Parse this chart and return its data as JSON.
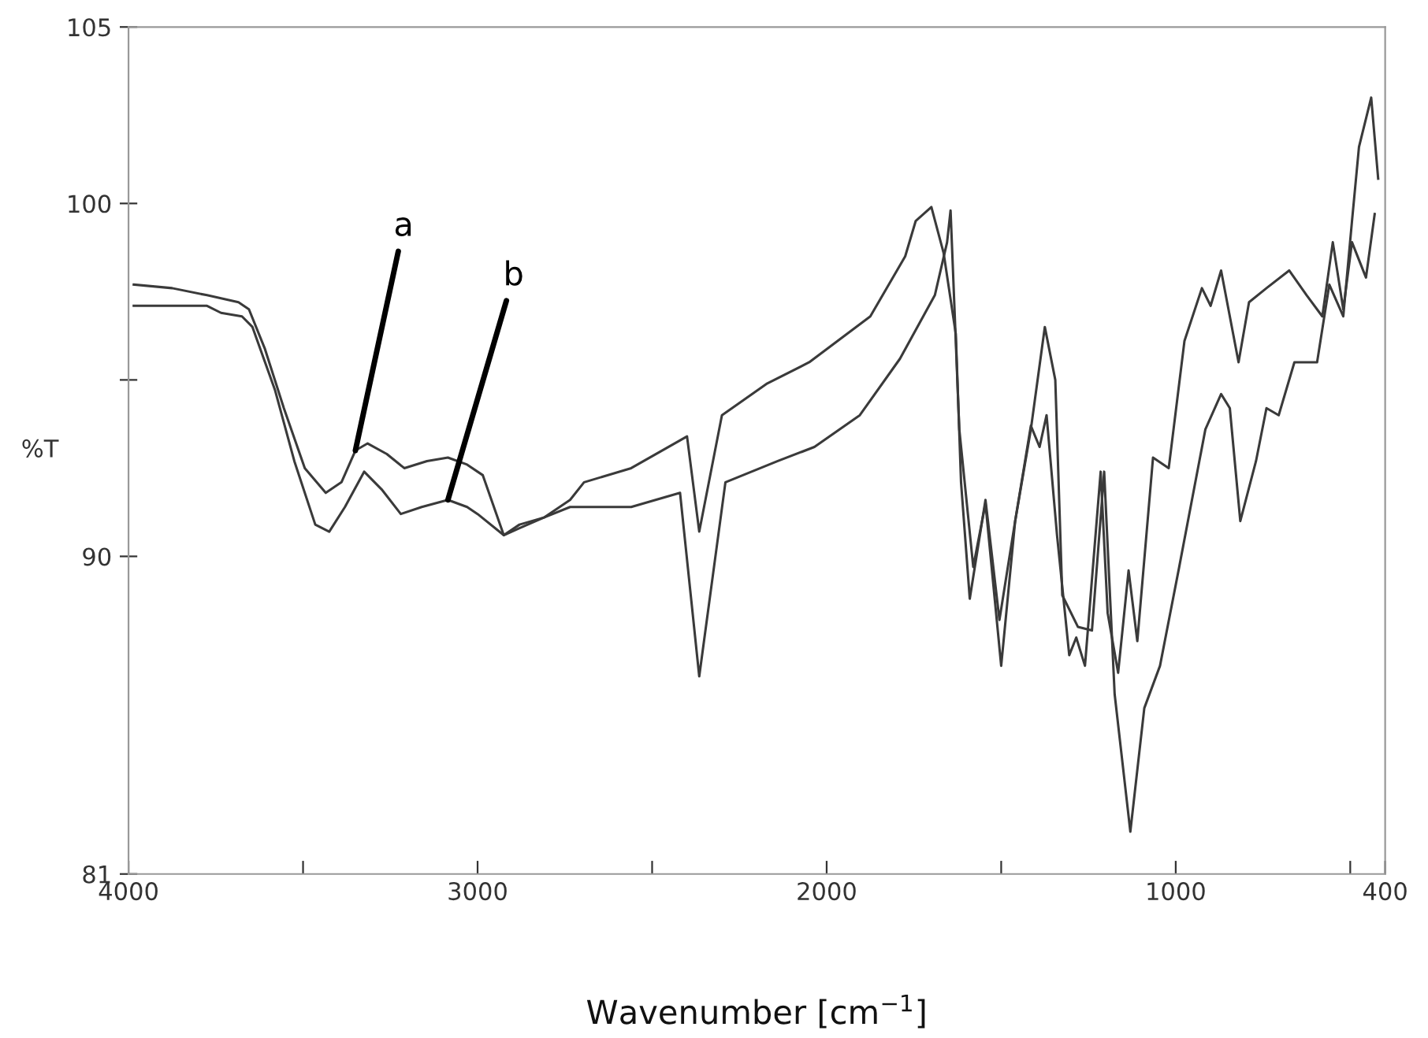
{
  "chart_data": {
    "type": "line",
    "xlabel": "Wavenumber [cm$^{−1}$]",
    "ylabel": "%T",
    "xlim": [
      4000,
      400
    ],
    "ylim": [
      81,
      105
    ],
    "xticks": [
      4000,
      {
        "value": 3500,
        "label": null
      },
      3000,
      {
        "value": 2500,
        "label": null
      },
      2000,
      {
        "value": 1500,
        "label": null
      },
      1000,
      {
        "value": 500,
        "label": null
      },
      400
    ],
    "yticks": [
      81,
      90,
      {
        "value": 95,
        "label": null
      },
      100,
      105
    ],
    "grid": false,
    "marker": "none",
    "line_style": "solid",
    "annotations": [
      {
        "text": "a",
        "x": 3350,
        "y": 93.0
      },
      {
        "text": "b",
        "x": 3085,
        "y": 91.6
      }
    ],
    "series": [
      {
        "color": "#3a3a3a",
        "x": [
          3985,
          3875,
          3775,
          3685,
          3655,
          3610,
          3555,
          3495,
          3435,
          3390,
          3350,
          3315,
          3260,
          3210,
          3145,
          3085,
          3030,
          2985,
          2925,
          2880,
          2810,
          2735,
          2695,
          2560,
          2420,
          2365,
          2290,
          2140,
          2035,
          1905,
          1790,
          1690,
          1655,
          1645,
          1620,
          1580,
          1545,
          1500,
          1460,
          1415,
          1390,
          1370,
          1340,
          1305,
          1285,
          1260,
          1215,
          1195,
          1165,
          1135,
          1110,
          1065,
          1020,
          975,
          925,
          900,
          870,
          820,
          790,
          740,
          675,
          625,
          580,
          550,
          520,
          495,
          455,
          430
        ],
        "values": [
          97.7,
          97.6,
          97.4,
          97.2,
          97.0,
          95.9,
          94.2,
          92.5,
          91.8,
          92.1,
          93.0,
          93.2,
          92.9,
          92.5,
          92.7,
          92.8,
          92.6,
          92.3,
          90.6,
          90.9,
          91.1,
          91.4,
          91.4,
          91.4,
          91.8,
          86.6,
          92.1,
          92.7,
          93.1,
          94.0,
          95.6,
          97.4,
          98.9,
          99.8,
          93.6,
          89.7,
          91.5,
          86.9,
          91.0,
          93.7,
          93.1,
          94.0,
          90.6,
          87.2,
          87.7,
          86.9,
          92.4,
          88.4,
          86.7,
          89.6,
          87.6,
          92.8,
          92.5,
          96.1,
          97.6,
          97.1,
          98.1,
          95.5,
          97.2,
          97.6,
          98.1,
          97.4,
          96.8,
          98.9,
          97.0,
          98.9,
          97.9,
          99.7
        ]
      },
      {
        "color": "#3a3a3a",
        "x": [
          3985,
          3775,
          3735,
          3675,
          3645,
          3580,
          3525,
          3465,
          3425,
          3380,
          3325,
          3275,
          3220,
          3160,
          3085,
          3030,
          3000,
          2925,
          2880,
          2810,
          2735,
          2695,
          2560,
          2400,
          2365,
          2300,
          2170,
          2050,
          1875,
          1775,
          1745,
          1700,
          1665,
          1630,
          1615,
          1590,
          1545,
          1505,
          1460,
          1415,
          1375,
          1345,
          1325,
          1280,
          1240,
          1205,
          1175,
          1130,
          1090,
          1045,
          990,
          915,
          870,
          845,
          815,
          770,
          740,
          705,
          660,
          595,
          560,
          520,
          495,
          475,
          440,
          420
        ],
        "values": [
          97.1,
          97.1,
          96.9,
          96.8,
          96.5,
          94.7,
          92.7,
          90.9,
          90.7,
          91.4,
          92.4,
          91.9,
          91.2,
          91.4,
          91.6,
          91.4,
          91.2,
          90.6,
          90.8,
          91.1,
          91.6,
          92.1,
          92.5,
          93.4,
          90.7,
          94.0,
          94.9,
          95.5,
          96.8,
          98.5,
          99.5,
          99.9,
          98.6,
          96.3,
          92.1,
          88.8,
          91.6,
          88.2,
          91.0,
          93.6,
          96.5,
          95.0,
          88.9,
          88.0,
          87.9,
          92.4,
          86.1,
          82.2,
          85.7,
          86.9,
          89.7,
          93.6,
          94.6,
          94.2,
          91.0,
          92.7,
          94.2,
          94.0,
          95.5,
          95.5,
          97.7,
          96.8,
          99.5,
          101.6,
          103.0,
          100.7
        ]
      }
    ]
  }
}
